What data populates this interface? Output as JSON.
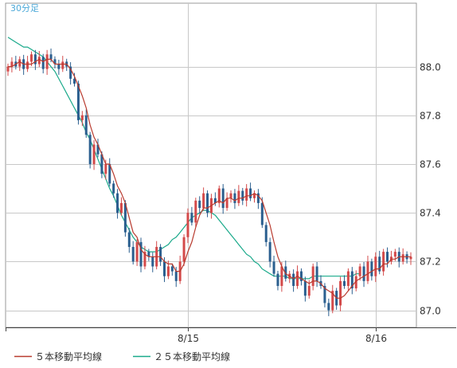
{
  "chart_data": {
    "type": "candlestick",
    "interval_label": "30分足",
    "title": "",
    "xlabel": "",
    "ylabel": "",
    "ylim": [
      86.93,
      88.26
    ],
    "y_ticks": [
      "88.0",
      "87.8",
      "87.6",
      "87.4",
      "87.2",
      "87.0"
    ],
    "y_tick_values": [
      88.0,
      87.8,
      87.6,
      87.4,
      87.2,
      87.0
    ],
    "x_ticks": [
      "8/15",
      "8/16"
    ],
    "x_tick_index": [
      46,
      94
    ],
    "colors": {
      "up": "#d44a4a",
      "down": "#2b5f8f",
      "ma5": "#b83a2e",
      "ma25": "#19a98a",
      "grid": "#c8c8c8",
      "axis": "#444444"
    },
    "legend": [
      {
        "label": "５本移動平均線",
        "color": "#b83a2e"
      },
      {
        "label": "２５本移動平均線",
        "color": "#19a98a"
      }
    ],
    "close": [
      88.0,
      88.02,
      88.0,
      88.03,
      87.99,
      88.02,
      88.05,
      88.01,
      88.04,
      87.99,
      88.05,
      88.03,
      88.01,
      87.99,
      88.02,
      88.0,
      87.95,
      87.93,
      87.78,
      87.8,
      87.72,
      87.6,
      87.68,
      87.64,
      87.56,
      87.6,
      87.52,
      87.48,
      87.4,
      87.44,
      87.32,
      87.26,
      87.2,
      87.28,
      87.18,
      87.24,
      87.22,
      87.18,
      87.26,
      87.2,
      87.14,
      87.18,
      87.16,
      87.12,
      87.2,
      87.3,
      87.4,
      87.36,
      87.45,
      87.42,
      87.48,
      87.4,
      87.46,
      87.44,
      87.5,
      87.42,
      87.46,
      87.48,
      87.44,
      87.49,
      87.45,
      87.5,
      87.46,
      87.48,
      87.44,
      87.35,
      87.28,
      87.2,
      87.15,
      87.1,
      87.18,
      87.13,
      87.15,
      87.1,
      87.16,
      87.12,
      87.06,
      87.1,
      87.18,
      87.12,
      87.1,
      87.03,
      87.0,
      87.08,
      87.02,
      87.12,
      87.1,
      87.16,
      87.09,
      87.14,
      87.18,
      87.12,
      87.2,
      87.14,
      87.22,
      87.16,
      87.24,
      87.2,
      87.22,
      87.24,
      87.2,
      87.23,
      87.21,
      87.22
    ],
    "series": [
      {
        "name": "５本移動平均線",
        "values": [
          88.0,
          88.0,
          88.01,
          88.02,
          88.01,
          88.01,
          88.01,
          88.02,
          88.03,
          88.02,
          88.03,
          88.03,
          88.01,
          88.01,
          88.01,
          88.01,
          87.99,
          87.96,
          87.92,
          87.88,
          87.83,
          87.76,
          87.71,
          87.68,
          87.64,
          87.6,
          87.6,
          87.56,
          87.51,
          87.48,
          87.44,
          87.38,
          87.32,
          87.3,
          87.25,
          87.23,
          87.22,
          87.22,
          87.22,
          87.22,
          87.2,
          87.19,
          87.19,
          87.16,
          87.16,
          87.19,
          87.24,
          87.28,
          87.34,
          87.39,
          87.42,
          87.42,
          87.43,
          87.44,
          87.45,
          87.44,
          87.46,
          87.46,
          87.45,
          87.46,
          87.46,
          87.47,
          87.47,
          87.48,
          87.47,
          87.45,
          87.4,
          87.35,
          87.28,
          87.22,
          87.18,
          87.15,
          87.14,
          87.13,
          87.14,
          87.13,
          87.12,
          87.11,
          87.12,
          87.12,
          87.11,
          87.09,
          87.08,
          87.07,
          87.05,
          87.05,
          87.06,
          87.08,
          87.1,
          87.12,
          87.13,
          87.14,
          87.15,
          87.16,
          87.17,
          87.17,
          87.19,
          87.19,
          87.21,
          87.21,
          87.22,
          87.22,
          87.22,
          87.22
        ]
      },
      {
        "name": "２５本移動平均線",
        "values": [
          88.12,
          88.11,
          88.1,
          88.09,
          88.08,
          88.08,
          88.07,
          88.06,
          88.05,
          88.04,
          88.02,
          88.0,
          87.98,
          87.95,
          87.92,
          87.89,
          87.86,
          87.83,
          87.8,
          87.77,
          87.73,
          87.7,
          87.66,
          87.62,
          87.58,
          87.54,
          87.5,
          87.47,
          87.43,
          87.39,
          87.36,
          87.33,
          87.3,
          87.28,
          87.26,
          87.25,
          87.24,
          87.24,
          87.24,
          87.25,
          87.26,
          87.27,
          87.29,
          87.3,
          87.32,
          87.34,
          87.36,
          87.38,
          87.39,
          87.4,
          87.41,
          87.41,
          87.4,
          87.39,
          87.37,
          87.35,
          87.33,
          87.31,
          87.29,
          87.27,
          87.25,
          87.23,
          87.22,
          87.2,
          87.19,
          87.17,
          87.16,
          87.15,
          87.14,
          87.14,
          87.14,
          87.14,
          87.13,
          87.13,
          87.13,
          87.13,
          87.13,
          87.13,
          87.14,
          87.14,
          87.14,
          87.14,
          87.14,
          87.14,
          87.14,
          87.14,
          87.14,
          87.14,
          87.14,
          87.15,
          87.15
        ]
      }
    ]
  }
}
